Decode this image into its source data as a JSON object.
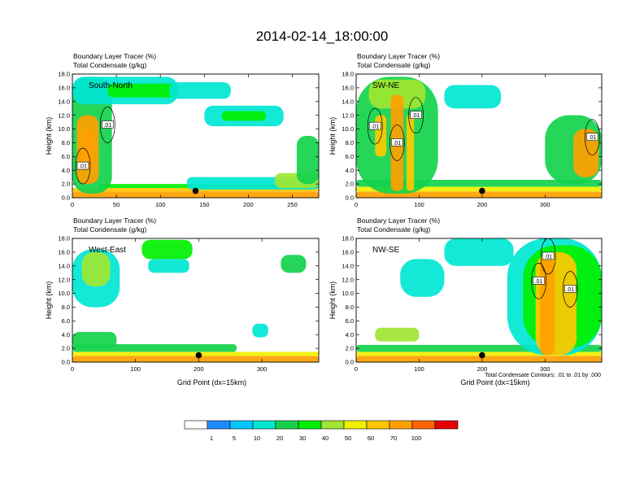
{
  "chart_data": {
    "type": "heatmap",
    "title": "2014-02-14_18:00:00",
    "panels": [
      {
        "name": "South-North",
        "subtitle_line1": "Boundary Layer Tracer   (%)",
        "subtitle_line2": "Total Condensate   (g/kg)",
        "ylabel": "Height (km)",
        "xlabel": "",
        "xlim": [
          0,
          280
        ],
        "ylim": [
          0,
          18
        ],
        "xticks": [
          0,
          50,
          100,
          150,
          200,
          250
        ],
        "yticks": [
          0.0,
          2.0,
          4.0,
          6.0,
          8.0,
          10.0,
          12.0,
          14.0,
          16.0,
          18.0
        ],
        "marker_x": 140,
        "contour_labels": [
          {
            "text": ".01",
            "x": 40,
            "y": 10.6
          },
          {
            "text": ".01",
            "x": 12,
            "y": 4.6
          }
        ],
        "tracer_blobs": [
          {
            "x0": 0,
            "x1": 280,
            "y0": 0,
            "y1": 0.9,
            "v": 85
          },
          {
            "x0": 0,
            "x1": 280,
            "y0": 0.9,
            "y1": 1.4,
            "v": 60
          },
          {
            "x0": 30,
            "x1": 280,
            "y0": 1.4,
            "y1": 2.0,
            "v": 30
          },
          {
            "x0": 130,
            "x1": 280,
            "y0": 1.2,
            "y1": 3.0,
            "v": 12
          },
          {
            "x0": 230,
            "x1": 280,
            "y0": 1.4,
            "y1": 3.6,
            "v": 40
          },
          {
            "x0": 255,
            "x1": 280,
            "y0": 2.0,
            "y1": 9.0,
            "v": 20
          },
          {
            "x0": 0,
            "x1": 45,
            "y0": 0.6,
            "y1": 17.6,
            "v": 25
          },
          {
            "x0": 5,
            "x1": 30,
            "y0": 2.0,
            "y1": 12.0,
            "v": 75
          },
          {
            "x0": 10,
            "x1": 24,
            "y0": 4.0,
            "y1": 10.0,
            "v": 98
          },
          {
            "x0": 0,
            "x1": 120,
            "y0": 13.6,
            "y1": 17.6,
            "v": 15
          },
          {
            "x0": 40,
            "x1": 120,
            "y0": 14.6,
            "y1": 16.6,
            "v": 35
          },
          {
            "x0": 110,
            "x1": 180,
            "y0": 14.4,
            "y1": 16.8,
            "v": 18
          },
          {
            "x0": 150,
            "x1": 240,
            "y0": 10.4,
            "y1": 13.4,
            "v": 15
          },
          {
            "x0": 170,
            "x1": 220,
            "y0": 11.2,
            "y1": 12.6,
            "v": 30
          }
        ]
      },
      {
        "name": "SW-NE",
        "subtitle_line1": "Boundary Layer Tracer   (%)",
        "subtitle_line2": "Total Condensate   (g/kg)",
        "ylabel": "Height (km)",
        "xlabel": "",
        "xlim": [
          0,
          390
        ],
        "ylim": [
          0,
          18
        ],
        "xticks": [
          0,
          100,
          200,
          300
        ],
        "yticks": [
          0.0,
          2.0,
          4.0,
          6.0,
          8.0,
          10.0,
          12.0,
          14.0,
          16.0,
          18.0
        ],
        "marker_x": 200,
        "contour_labels": [
          {
            "text": ".01",
            "x": 30,
            "y": 10.4
          },
          {
            "text": ".01",
            "x": 95,
            "y": 12.0
          },
          {
            "text": ".01",
            "x": 65,
            "y": 8.0
          },
          {
            "text": ".01",
            "x": 375,
            "y": 8.8
          }
        ],
        "tracer_blobs": [
          {
            "x0": 0,
            "x1": 390,
            "y0": 0,
            "y1": 0.9,
            "v": 85
          },
          {
            "x0": 0,
            "x1": 390,
            "y0": 0.9,
            "y1": 1.6,
            "v": 55
          },
          {
            "x0": 0,
            "x1": 390,
            "y0": 1.6,
            "y1": 2.6,
            "v": 20
          },
          {
            "x0": 0,
            "x1": 130,
            "y0": 0.6,
            "y1": 17.6,
            "v": 20
          },
          {
            "x0": 20,
            "x1": 110,
            "y0": 13.0,
            "y1": 17.2,
            "v": 40
          },
          {
            "x0": 55,
            "x1": 75,
            "y0": 1.0,
            "y1": 15.0,
            "v": 75
          },
          {
            "x0": 80,
            "x1": 92,
            "y0": 1.0,
            "y1": 12.0,
            "v": 60
          },
          {
            "x0": 30,
            "x1": 48,
            "y0": 6.0,
            "y1": 12.0,
            "v": 60
          },
          {
            "x0": 140,
            "x1": 230,
            "y0": 13.0,
            "y1": 16.4,
            "v": 12
          },
          {
            "x0": 300,
            "x1": 390,
            "y0": 2.0,
            "y1": 12.0,
            "v": 25
          },
          {
            "x0": 345,
            "x1": 385,
            "y0": 3.0,
            "y1": 10.0,
            "v": 70
          }
        ]
      },
      {
        "name": "West-East",
        "subtitle_line1": "Boundary Layer Tracer   (%)",
        "subtitle_line2": "Total Condensate   (g/kg)",
        "ylabel": "Height (km)",
        "xlabel": "Grid Point (dx=15km)",
        "xlim": [
          0,
          390
        ],
        "ylim": [
          0,
          18
        ],
        "xticks": [
          0,
          100,
          200,
          300
        ],
        "yticks": [
          0.0,
          2.0,
          4.0,
          6.0,
          8.0,
          10.0,
          12.0,
          14.0,
          16.0,
          18.0
        ],
        "marker_x": 200,
        "contour_labels": [],
        "tracer_blobs": [
          {
            "x0": 0,
            "x1": 390,
            "y0": 0,
            "y1": 0.9,
            "v": 88
          },
          {
            "x0": 0,
            "x1": 390,
            "y0": 0.9,
            "y1": 1.5,
            "v": 55
          },
          {
            "x0": 0,
            "x1": 260,
            "y0": 1.5,
            "y1": 2.6,
            "v": 22
          },
          {
            "x0": 0,
            "x1": 70,
            "y0": 2.0,
            "y1": 4.4,
            "v": 25
          },
          {
            "x0": 0,
            "x1": 75,
            "y0": 8.0,
            "y1": 16.4,
            "v": 18
          },
          {
            "x0": 15,
            "x1": 60,
            "y0": 11.0,
            "y1": 16.0,
            "v": 40
          },
          {
            "x0": 110,
            "x1": 190,
            "y0": 15.0,
            "y1": 17.8,
            "v": 30
          },
          {
            "x0": 120,
            "x1": 185,
            "y0": 13.0,
            "y1": 15.0,
            "v": 15
          },
          {
            "x0": 285,
            "x1": 310,
            "y0": 3.6,
            "y1": 5.6,
            "v": 12
          },
          {
            "x0": 330,
            "x1": 370,
            "y0": 13.0,
            "y1": 15.6,
            "v": 25
          }
        ]
      },
      {
        "name": "NW-SE",
        "subtitle_line1": "Boundary Layer Tracer   (%)",
        "subtitle_line2": "Total Condensate   (g/kg)",
        "ylabel": "Height (km)",
        "xlabel": "Grid Point (dx=15km)",
        "xlim": [
          0,
          390
        ],
        "ylim": [
          0,
          18
        ],
        "xticks": [
          0,
          100,
          200,
          300
        ],
        "yticks": [
          0.0,
          2.0,
          4.0,
          6.0,
          8.0,
          10.0,
          12.0,
          14.0,
          16.0,
          18.0
        ],
        "marker_x": 200,
        "contour_labels": [
          {
            "text": ".01",
            "x": 305,
            "y": 15.4
          },
          {
            "text": ".01",
            "x": 290,
            "y": 11.8
          },
          {
            "text": ".01",
            "x": 340,
            "y": 10.6
          }
        ],
        "tracer_blobs": [
          {
            "x0": 0,
            "x1": 390,
            "y0": 0,
            "y1": 0.9,
            "v": 85
          },
          {
            "x0": 0,
            "x1": 390,
            "y0": 0.9,
            "y1": 1.5,
            "v": 55
          },
          {
            "x0": 0,
            "x1": 390,
            "y0": 1.5,
            "y1": 2.5,
            "v": 20
          },
          {
            "x0": 30,
            "x1": 100,
            "y0": 3.0,
            "y1": 5.0,
            "v": 40
          },
          {
            "x0": 70,
            "x1": 140,
            "y0": 9.5,
            "y1": 15.0,
            "v": 15
          },
          {
            "x0": 140,
            "x1": 250,
            "y0": 14.0,
            "y1": 18.0,
            "v": 15
          },
          {
            "x0": 240,
            "x1": 390,
            "y0": 1.0,
            "y1": 18.0,
            "v": 15
          },
          {
            "x0": 265,
            "x1": 390,
            "y0": 2.0,
            "y1": 17.0,
            "v": 35
          },
          {
            "x0": 285,
            "x1": 350,
            "y0": 1.0,
            "y1": 16.0,
            "v": 65
          },
          {
            "x0": 292,
            "x1": 315,
            "y0": 1.0,
            "y1": 15.0,
            "v": 88
          }
        ]
      }
    ],
    "note": "Total Condensate Contours: .01 to .01 by .000",
    "colorbar": {
      "levels": [
        "1",
        "5",
        "10",
        "20",
        "30",
        "40",
        "50",
        "60",
        "70",
        "100"
      ],
      "colors": [
        "#ffffff",
        "#1e8cff",
        "#00c8ff",
        "#00e6d2",
        "#14d24b",
        "#00f000",
        "#a0e632",
        "#f0f000",
        "#ffc800",
        "#ffa000",
        "#ff6400",
        "#e60000"
      ]
    },
    "contour_color": "#000000",
    "marker_color": "#000000"
  }
}
